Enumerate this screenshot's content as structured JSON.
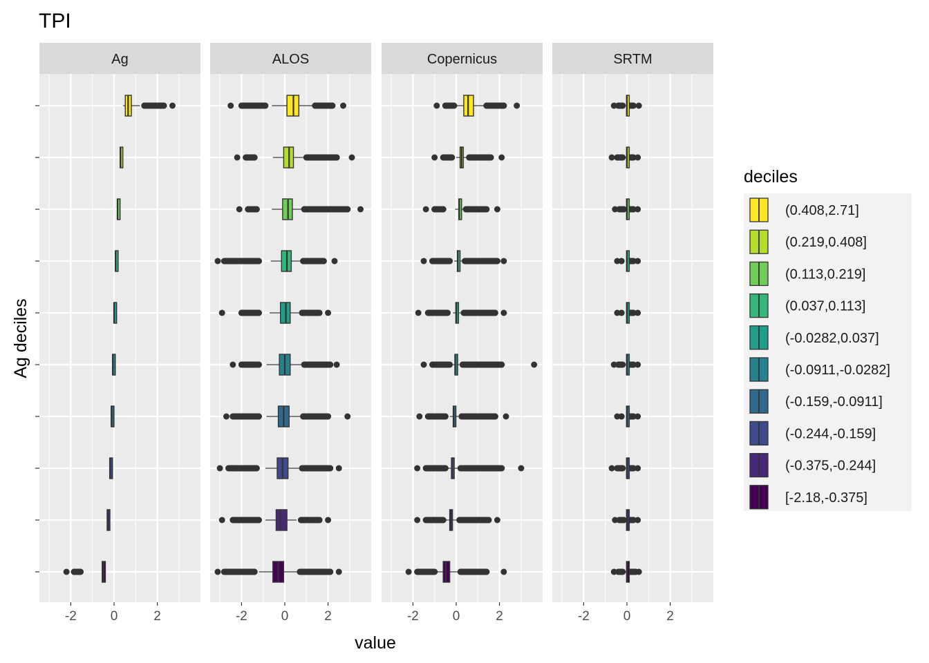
{
  "chart_data": {
    "type": "boxplot",
    "title": "TPI",
    "xlabel": "value",
    "ylabel": "Ag deciles",
    "xlim": [
      -3.5,
      4.0
    ],
    "x_ticks": [
      -2,
      0,
      2
    ],
    "x_tick_labels": [
      "-2",
      "0",
      "2"
    ],
    "grid": true,
    "legend_title": "deciles",
    "legend_position": "right",
    "categories": [
      "[-2.18,-0.375]",
      "(-0.375,-0.244]",
      "(-0.244,-0.159]",
      "(-0.159,-0.0911]",
      "(-0.0911,-0.0282]",
      "(-0.0282,0.037]",
      "(0.037,0.113]",
      "(0.113,0.219]",
      "(0.219,0.408]",
      "(0.408,2.71]"
    ],
    "legend_entries": [
      "(0.408,2.71]",
      "(0.219,0.408]",
      "(0.113,0.219]",
      "(0.037,0.113]",
      "(-0.0282,0.037]",
      "(-0.0911,-0.0282]",
      "(-0.159,-0.0911]",
      "(-0.244,-0.159]",
      "(-0.375,-0.244]",
      "[-2.18,-0.375]"
    ],
    "colors": [
      "#440154",
      "#482878",
      "#3e4a89",
      "#31688e",
      "#26828e",
      "#1f9e89",
      "#35b779",
      "#6ece58",
      "#b5de2b",
      "#fde725"
    ],
    "panels": [
      {
        "name": "Ag",
        "boxes": [
          {
            "q1": -0.55,
            "median": -0.48,
            "q3": -0.4,
            "wlo": -0.55,
            "whi": -0.4,
            "outliers_lo": [
              -2.2,
              -1.85,
              -1.55
            ],
            "outliers_hi": []
          },
          {
            "q1": -0.32,
            "median": -0.3,
            "q3": -0.27,
            "wlo": -0.33,
            "whi": -0.26,
            "outliers_lo": [],
            "outliers_hi": []
          },
          {
            "q1": -0.2,
            "median": -0.19,
            "q3": -0.17,
            "wlo": -0.21,
            "whi": -0.16,
            "outliers_lo": [],
            "outliers_hi": []
          },
          {
            "q1": -0.13,
            "median": -0.12,
            "q3": -0.11,
            "wlo": -0.14,
            "whi": -0.1,
            "outliers_lo": [],
            "outliers_hi": []
          },
          {
            "q1": -0.07,
            "median": -0.06,
            "q3": -0.05,
            "wlo": -0.08,
            "whi": -0.04,
            "outliers_lo": [],
            "outliers_hi": []
          },
          {
            "q1": -0.01,
            "median": 0.0,
            "q3": 0.02,
            "wlo": -0.02,
            "whi": 0.03,
            "outliers_lo": [],
            "outliers_hi": []
          },
          {
            "q1": 0.06,
            "median": 0.07,
            "q3": 0.09,
            "wlo": 0.05,
            "whi": 0.1,
            "outliers_lo": [],
            "outliers_hi": []
          },
          {
            "q1": 0.15,
            "median": 0.16,
            "q3": 0.18,
            "wlo": 0.14,
            "whi": 0.2,
            "outliers_lo": [],
            "outliers_hi": []
          },
          {
            "q1": 0.28,
            "median": 0.3,
            "q3": 0.33,
            "wlo": 0.26,
            "whi": 0.36,
            "outliers_lo": [],
            "outliers_hi": []
          },
          {
            "q1": 0.52,
            "median": 0.65,
            "q3": 0.8,
            "wlo": 0.42,
            "whi": 1.2,
            "outliers_lo": [],
            "outliers_hi": [
              1.4,
              1.7,
              2.0,
              2.3,
              2.7
            ]
          }
        ]
      },
      {
        "name": "ALOS",
        "boxes": [
          {
            "q1": -0.55,
            "median": -0.3,
            "q3": -0.05,
            "wlo": -1.2,
            "whi": 0.6,
            "outliers_lo": [
              -3.1,
              -2.8,
              -2.3,
              -1.8,
              -1.4
            ],
            "outliers_hi": [
              0.7,
              1.1,
              1.5,
              1.8,
              2.1,
              2.5
            ]
          },
          {
            "q1": -0.4,
            "median": -0.2,
            "q3": 0.1,
            "wlo": -0.9,
            "whi": 0.55,
            "outliers_lo": [
              -2.9,
              -2.4,
              -2.1,
              -1.7,
              -1.2
            ],
            "outliers_hi": [
              0.75,
              1.2,
              1.6,
              2.0
            ]
          },
          {
            "q1": -0.35,
            "median": -0.1,
            "q3": 0.15,
            "wlo": -0.9,
            "whi": 0.65,
            "outliers_lo": [
              -3.0,
              -2.6,
              -2.1,
              -1.7,
              -1.3
            ],
            "outliers_hi": [
              0.8,
              1.3,
              1.7,
              2.1,
              2.5
            ]
          },
          {
            "q1": -0.3,
            "median": -0.05,
            "q3": 0.2,
            "wlo": -0.85,
            "whi": 0.7,
            "outliers_lo": [
              -2.7,
              -2.4,
              -2.0,
              -1.6,
              -1.2
            ],
            "outliers_hi": [
              0.85,
              1.2,
              1.6,
              2.0,
              2.9
            ]
          },
          {
            "q1": -0.25,
            "median": 0.0,
            "q3": 0.25,
            "wlo": -0.85,
            "whi": 0.75,
            "outliers_lo": [
              -2.4,
              -2.0,
              -1.6,
              -1.2
            ],
            "outliers_hi": [
              0.9,
              1.3,
              1.7,
              2.1,
              2.4
            ]
          },
          {
            "q1": -0.2,
            "median": 0.05,
            "q3": 0.25,
            "wlo": -0.7,
            "whi": 0.65,
            "outliers_lo": [
              -2.9,
              -2.0,
              -1.6,
              -1.2
            ],
            "outliers_hi": [
              0.8,
              1.2,
              1.6,
              2.0
            ]
          },
          {
            "q1": -0.15,
            "median": 0.1,
            "q3": 0.3,
            "wlo": -0.65,
            "whi": 0.7,
            "outliers_lo": [
              -3.1,
              -2.8,
              -2.0,
              -1.6,
              -1.2
            ],
            "outliers_hi": [
              0.85,
              1.3,
              1.8,
              2.3
            ]
          },
          {
            "q1": -0.1,
            "median": 0.15,
            "q3": 0.35,
            "wlo": -0.6,
            "whi": 0.75,
            "outliers_lo": [
              -2.1,
              -1.7,
              -1.3
            ],
            "outliers_hi": [
              0.9,
              1.3,
              1.8,
              2.3,
              2.9,
              3.5
            ]
          },
          {
            "q1": -0.05,
            "median": 0.2,
            "q3": 0.4,
            "wlo": -0.55,
            "whi": 0.85,
            "outliers_lo": [
              -2.2,
              -1.8,
              -1.4
            ],
            "outliers_hi": [
              1.0,
              1.5,
              2.0,
              2.4,
              3.1
            ]
          },
          {
            "q1": 0.1,
            "median": 0.4,
            "q3": 0.65,
            "wlo": -0.6,
            "whi": 1.3,
            "outliers_lo": [
              -2.5,
              -2.0,
              -1.5,
              -0.9
            ],
            "outliers_hi": [
              1.4,
              1.8,
              2.2,
              2.7
            ]
          }
        ]
      },
      {
        "name": "Copernicus",
        "boxes": [
          {
            "q1": -0.6,
            "median": -0.48,
            "q3": -0.3,
            "wlo": -0.9,
            "whi": 0.05,
            "outliers_lo": [
              -2.2,
              -1.8,
              -1.4,
              -1.0
            ],
            "outliers_hi": [
              0.2,
              0.6,
              1.0,
              1.4,
              2.2
            ]
          },
          {
            "q1": -0.3,
            "median": -0.26,
            "q3": -0.2,
            "wlo": -0.5,
            "whi": 0.0,
            "outliers_lo": [
              -1.8,
              -1.4,
              -1.0,
              -0.6
            ],
            "outliers_hi": [
              0.15,
              0.6,
              1.1,
              1.5,
              1.9
            ]
          },
          {
            "q1": -0.22,
            "median": -0.2,
            "q3": -0.14,
            "wlo": -0.4,
            "whi": 0.05,
            "outliers_lo": [
              -1.8,
              -1.4,
              -1.0,
              -0.5
            ],
            "outliers_hi": [
              0.2,
              0.7,
              1.2,
              1.7,
              2.1,
              3.0
            ]
          },
          {
            "q1": -0.14,
            "median": -0.12,
            "q3": -0.08,
            "wlo": -0.3,
            "whi": 0.1,
            "outliers_lo": [
              -1.7,
              -1.3,
              -0.9,
              -0.5
            ],
            "outliers_hi": [
              0.25,
              0.8,
              1.3,
              1.8,
              2.3
            ]
          },
          {
            "q1": -0.06,
            "median": -0.05,
            "q3": 0.0,
            "wlo": -0.2,
            "whi": 0.15,
            "outliers_lo": [
              -1.5,
              -1.1,
              -0.7,
              -0.3
            ],
            "outliers_hi": [
              0.3,
              0.8,
              1.3,
              1.7,
              2.1,
              3.6
            ]
          },
          {
            "q1": -0.02,
            "median": 0.0,
            "q3": 0.05,
            "wlo": -0.15,
            "whi": 0.2,
            "outliers_lo": [
              -1.75,
              -1.3,
              -0.9,
              -0.4
            ],
            "outliers_hi": [
              0.35,
              0.8,
              1.3,
              1.8,
              2.2
            ]
          },
          {
            "q1": 0.05,
            "median": 0.07,
            "q3": 0.12,
            "wlo": -0.1,
            "whi": 0.3,
            "outliers_lo": [
              -1.5,
              -1.1,
              -0.7,
              -0.3
            ],
            "outliers_hi": [
              0.4,
              0.9,
              1.4,
              1.9,
              2.2
            ]
          },
          {
            "q1": 0.12,
            "median": 0.14,
            "q3": 0.2,
            "wlo": -0.05,
            "whi": 0.35,
            "outliers_lo": [
              -1.4,
              -1.0,
              -0.6
            ],
            "outliers_hi": [
              0.45,
              0.9,
              1.4,
              1.9
            ]
          },
          {
            "q1": 0.18,
            "median": 0.25,
            "q3": 0.33,
            "wlo": 0.0,
            "whi": 0.5,
            "outliers_lo": [
              -1.0,
              -0.6,
              -0.2
            ],
            "outliers_hi": [
              0.6,
              1.1,
              1.6,
              2.1
            ]
          },
          {
            "q1": 0.35,
            "median": 0.55,
            "q3": 0.8,
            "wlo": 0.0,
            "whi": 1.3,
            "outliers_lo": [
              -0.9,
              -0.5,
              -0.1
            ],
            "outliers_hi": [
              1.4,
              1.8,
              2.2,
              2.8
            ]
          }
        ]
      },
      {
        "name": "SRTM",
        "boxes": [
          {
            "q1": -0.02,
            "median": 0.0,
            "q3": 0.02,
            "wlo": -0.05,
            "whi": 0.05,
            "outliers_lo": [
              -0.6,
              -0.4,
              -0.2
            ],
            "outliers_hi": [
              0.1,
              0.25,
              0.4,
              0.55
            ]
          },
          {
            "q1": -0.02,
            "median": 0.0,
            "q3": 0.02,
            "wlo": -0.05,
            "whi": 0.05,
            "outliers_lo": [
              -0.55,
              -0.35,
              -0.15
            ],
            "outliers_hi": [
              0.1,
              0.3,
              0.5
            ]
          },
          {
            "q1": -0.02,
            "median": 0.0,
            "q3": 0.02,
            "wlo": -0.05,
            "whi": 0.05,
            "outliers_lo": [
              -0.7,
              -0.45,
              -0.2
            ],
            "outliers_hi": [
              0.1,
              0.3,
              0.5
            ]
          },
          {
            "q1": -0.02,
            "median": 0.0,
            "q3": 0.02,
            "wlo": -0.05,
            "whi": 0.05,
            "outliers_lo": [
              -0.45,
              -0.25
            ],
            "outliers_hi": [
              0.1,
              0.3,
              0.5
            ]
          },
          {
            "q1": -0.02,
            "median": 0.0,
            "q3": 0.02,
            "wlo": -0.05,
            "whi": 0.05,
            "outliers_lo": [
              -0.6,
              -0.4,
              -0.2
            ],
            "outliers_hi": [
              0.1,
              0.3,
              0.5
            ]
          },
          {
            "q1": -0.02,
            "median": 0.0,
            "q3": 0.02,
            "wlo": -0.05,
            "whi": 0.05,
            "outliers_lo": [
              -0.45,
              -0.25
            ],
            "outliers_hi": [
              0.1,
              0.3,
              0.5
            ]
          },
          {
            "q1": -0.02,
            "median": 0.0,
            "q3": 0.02,
            "wlo": -0.05,
            "whi": 0.05,
            "outliers_lo": [
              -0.45,
              -0.25
            ],
            "outliers_hi": [
              0.1,
              0.3,
              0.5
            ]
          },
          {
            "q1": -0.02,
            "median": 0.0,
            "q3": 0.02,
            "wlo": -0.05,
            "whi": 0.05,
            "outliers_lo": [
              -0.55,
              -0.35,
              -0.15
            ],
            "outliers_hi": [
              0.1,
              0.3,
              0.5
            ]
          },
          {
            "q1": -0.02,
            "median": 0.0,
            "q3": 0.02,
            "wlo": -0.05,
            "whi": 0.05,
            "outliers_lo": [
              -0.7,
              -0.45,
              -0.2
            ],
            "outliers_hi": [
              0.1,
              0.3,
              0.5
            ]
          },
          {
            "q1": -0.02,
            "median": 0.0,
            "q3": 0.02,
            "wlo": -0.05,
            "whi": 0.05,
            "outliers_lo": [
              -0.6,
              -0.4,
              -0.2
            ],
            "outliers_hi": [
              0.1,
              0.3,
              0.55
            ]
          }
        ]
      }
    ]
  }
}
